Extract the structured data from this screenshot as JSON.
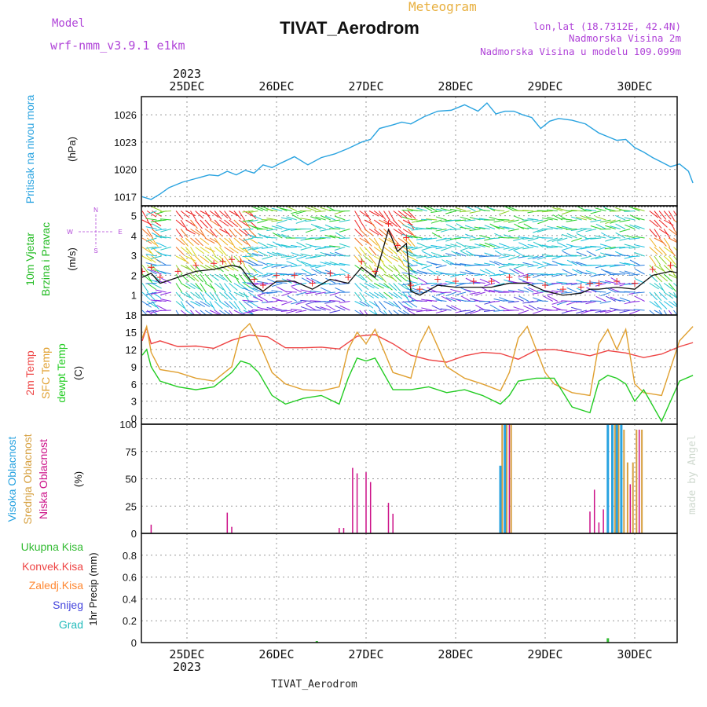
{
  "header": {
    "model_label": "Model",
    "model_name": "wrf-nmm_v3.9.1 e1km",
    "meteogram_label": "Meteogram",
    "station_title": "TIVAT_Aerodrom",
    "coords": "lon,lat (18.7312E, 42.4N)",
    "elevation": "Nadmorska Visina 2m",
    "model_elevation": "Nadmorska Visina u modelu 109.099m"
  },
  "footer": {
    "station": "TIVAT_Aerodrom",
    "credit": "made by Angel"
  },
  "time_axis": {
    "year": "2023",
    "days": [
      "25DEC",
      "26DEC",
      "27DEC",
      "28DEC",
      "29DEC",
      "30DEC"
    ]
  },
  "colors": {
    "pressure": "#29a3e0",
    "temp2m": "#ee4444",
    "sfc_temp": "#e0a030",
    "dewpoint": "#22cc22",
    "high_cloud": "#29a3e0",
    "mid_cloud": "#d6a040",
    "low_cloud": "#cc1188",
    "total_precip": "#33bb33",
    "conv_precip": "#ee4444",
    "frozen_precip": "#ff8833",
    "snow": "#4444dd",
    "graupel": "#22bbbb",
    "wind_label": "#22bb22",
    "wind_compass": "#b044d8"
  },
  "chart_data": [
    {
      "type": "line",
      "panel": "pressure",
      "ylabel_main": "Pritisak na nivou mora",
      "ylabel_unit": "(hPa)",
      "ylim": [
        1016,
        1028
      ],
      "yticks": [
        "1017",
        "1020",
        "1023",
        "1026"
      ],
      "series": [
        {
          "x": [
            0,
            0.1,
            0.2,
            0.3,
            0.45,
            0.6,
            0.75,
            0.85,
            0.95,
            1.05,
            1.15,
            1.25,
            1.35,
            1.45,
            1.55,
            1.7,
            1.85,
            2.0,
            2.15,
            2.3,
            2.45,
            2.55,
            2.65,
            2.8,
            2.9,
            3.0,
            3.15,
            3.3,
            3.45,
            3.6,
            3.75,
            3.85,
            3.95,
            4.05,
            4.15,
            4.25,
            4.35,
            4.45,
            4.55,
            4.65,
            4.8,
            4.95,
            5.1,
            5.2,
            5.3,
            5.4,
            5.5,
            5.6,
            5.7,
            5.8,
            5.9,
            6.0,
            6.1,
            6.15
          ],
          "values": [
            1017.0,
            1016.7,
            1017.3,
            1018.0,
            1018.6,
            1019.0,
            1019.4,
            1019.3,
            1019.8,
            1019.4,
            1019.9,
            1019.6,
            1020.5,
            1020.2,
            1020.7,
            1021.4,
            1020.5,
            1021.3,
            1021.7,
            1022.3,
            1023.0,
            1023.3,
            1024.5,
            1024.9,
            1025.2,
            1025.0,
            1025.8,
            1026.4,
            1026.5,
            1027.1,
            1026.4,
            1027.3,
            1026.1,
            1026.4,
            1026.4,
            1026.0,
            1025.7,
            1024.5,
            1025.3,
            1025.6,
            1025.4,
            1025.0,
            1024.0,
            1023.6,
            1023.2,
            1023.3,
            1022.4,
            1021.9,
            1021.3,
            1020.8,
            1020.3,
            1020.6,
            1019.8,
            1018.5
          ]
        }
      ]
    },
    {
      "type": "line",
      "panel": "wind",
      "ylabel_main": "10m Vjetar",
      "ylabel_sub": "Brzina i Pravac",
      "ylabel_unit": "(m/s)",
      "compass": {
        "north": "N",
        "south": "S",
        "east": "E",
        "west": "W"
      },
      "ylim": [
        0,
        5.5
      ],
      "yticks": [
        "1",
        "2",
        "3",
        "4",
        "5"
      ],
      "series": [
        {
          "name": "speed",
          "x": [
            0,
            0.1,
            0.2,
            0.4,
            0.6,
            0.8,
            0.9,
            1.0,
            1.1,
            1.25,
            1.35,
            1.5,
            1.7,
            1.9,
            2.1,
            2.3,
            2.45,
            2.6,
            2.75,
            2.85,
            2.95,
            3.0,
            3.1,
            3.3,
            3.5,
            3.7,
            3.9,
            4.1,
            4.3,
            4.5,
            4.7,
            4.9,
            5.0,
            5.1,
            5.3,
            5.5,
            5.7,
            5.9,
            6.0,
            6.15
          ],
          "values": [
            1.9,
            2.1,
            1.6,
            1.9,
            2.2,
            2.3,
            2.4,
            2.5,
            2.4,
            1.5,
            1.2,
            1.7,
            1.7,
            1.3,
            1.8,
            1.6,
            2.4,
            1.9,
            4.3,
            3.2,
            3.6,
            1.2,
            1.0,
            1.5,
            1.4,
            1.4,
            1.4,
            1.6,
            1.6,
            1.2,
            1.0,
            1.1,
            1.3,
            1.3,
            1.4,
            1.3,
            2.0,
            2.2,
            2.1,
            1.4
          ]
        }
      ]
    },
    {
      "type": "line",
      "panel": "temperature",
      "ylabel_lines": [
        "2m Temp",
        "SFC Temp",
        "dewpt Temp"
      ],
      "ylabel_unit": "(C)",
      "ylim": [
        -1,
        18
      ],
      "yticks": [
        "0",
        "3",
        "6",
        "9",
        "12",
        "15",
        "18"
      ],
      "series": [
        {
          "name": "2m Temp",
          "x": [
            0,
            0.05,
            0.1,
            0.2,
            0.4,
            0.6,
            0.8,
            1.0,
            1.2,
            1.4,
            1.6,
            1.8,
            2.0,
            2.2,
            2.4,
            2.6,
            2.8,
            3.0,
            3.2,
            3.4,
            3.6,
            3.8,
            4.0,
            4.2,
            4.4,
            4.6,
            4.8,
            5.0,
            5.2,
            5.4,
            5.6,
            5.8,
            6.0,
            6.15
          ],
          "values": [
            13.5,
            15.8,
            13.0,
            13.5,
            12.5,
            12.6,
            12.2,
            13.6,
            14.5,
            14.2,
            12.3,
            12.3,
            12.4,
            12.1,
            14.3,
            14.6,
            13.0,
            11.0,
            10.2,
            9.8,
            10.9,
            11.5,
            11.3,
            10.3,
            11.9,
            12.0,
            11.5,
            10.9,
            11.8,
            11.4,
            10.6,
            11.2,
            12.5,
            13.2
          ]
        },
        {
          "name": "SFC Temp",
          "x": [
            0,
            0.05,
            0.1,
            0.2,
            0.4,
            0.6,
            0.8,
            1.0,
            1.1,
            1.2,
            1.3,
            1.45,
            1.6,
            1.8,
            2.0,
            2.2,
            2.3,
            2.4,
            2.5,
            2.6,
            2.8,
            3.0,
            3.1,
            3.2,
            3.4,
            3.6,
            3.8,
            4.0,
            4.1,
            4.2,
            4.3,
            4.4,
            4.5,
            4.6,
            4.8,
            5.0,
            5.1,
            5.2,
            5.3,
            5.4,
            5.5,
            5.6,
            5.8,
            6.0,
            6.15
          ],
          "values": [
            14.0,
            16.0,
            11.5,
            8.5,
            8.0,
            7.0,
            6.5,
            9.0,
            15.0,
            16.5,
            13.5,
            8.0,
            6.0,
            5.0,
            4.8,
            5.5,
            12.0,
            15.0,
            13.0,
            15.5,
            8.0,
            7.0,
            13.0,
            16.0,
            9.0,
            7.0,
            6.0,
            4.8,
            8.0,
            14.0,
            16.0,
            12.0,
            8.0,
            6.0,
            4.5,
            4.0,
            13.0,
            15.5,
            12.0,
            15.5,
            6.0,
            4.5,
            4.0,
            13.5,
            16.0
          ]
        },
        {
          "name": "dewpt Temp",
          "x": [
            0,
            0.05,
            0.1,
            0.2,
            0.4,
            0.6,
            0.8,
            1.0,
            1.1,
            1.2,
            1.3,
            1.45,
            1.6,
            1.8,
            2.0,
            2.2,
            2.3,
            2.4,
            2.5,
            2.6,
            2.8,
            3.0,
            3.2,
            3.4,
            3.6,
            3.8,
            4.0,
            4.1,
            4.2,
            4.4,
            4.6,
            4.8,
            5.0,
            5.1,
            5.2,
            5.3,
            5.4,
            5.5,
            5.6,
            5.8,
            5.9,
            6.0,
            6.15
          ],
          "values": [
            11.0,
            12.0,
            9.0,
            6.5,
            5.5,
            5.0,
            5.5,
            8.0,
            10.0,
            9.5,
            8.0,
            4.0,
            2.5,
            3.5,
            4.0,
            2.5,
            7.0,
            10.5,
            10.0,
            10.5,
            5.0,
            5.0,
            5.5,
            4.5,
            5.0,
            4.0,
            2.5,
            4.0,
            6.5,
            7.0,
            7.0,
            2.0,
            1.0,
            6.5,
            7.5,
            7.0,
            6.0,
            3.0,
            5.0,
            -0.5,
            3.0,
            6.5,
            7.5
          ]
        }
      ]
    },
    {
      "type": "bar",
      "panel": "cloud",
      "ylabel_lines": [
        "Visoka Oblacnost",
        "Srednja Oblacnost",
        "Niska Oblacnost"
      ],
      "ylabel_unit": "(%)",
      "ylim": [
        0,
        100
      ],
      "yticks": [
        "0",
        "25",
        "50",
        "75",
        "100"
      ],
      "series": [
        {
          "name": "Niska Oblacnost",
          "x": [
            0.1,
            0.95,
            1.0,
            2.2,
            2.25,
            2.35,
            2.4,
            2.5,
            2.55,
            2.75,
            2.8,
            4.0,
            4.05,
            4.1,
            5.0,
            5.05,
            5.1,
            5.15,
            5.25,
            5.35,
            5.45,
            5.55
          ],
          "values": [
            8,
            19,
            6,
            5,
            5,
            60,
            55,
            56,
            47,
            28,
            18,
            60,
            100,
            100,
            20,
            40,
            10,
            22,
            100,
            100,
            45,
            95
          ]
        },
        {
          "name": "Srednja Oblacnost",
          "x": [
            4.02,
            4.07,
            4.12,
            5.28,
            5.32,
            5.38,
            5.42,
            5.48,
            5.52,
            5.58
          ],
          "values": [
            100,
            100,
            100,
            100,
            100,
            95,
            65,
            65,
            95,
            95
          ]
        },
        {
          "name": "Visoka Oblacnost",
          "x": [
            4.0,
            4.05,
            5.2,
            5.25,
            5.3,
            5.35
          ],
          "values": [
            62,
            100,
            100,
            100,
            100,
            100
          ]
        }
      ]
    },
    {
      "type": "bar",
      "panel": "precip",
      "ylabel": "1hr Precip (mm)",
      "legend": [
        "Ukupna Kisa",
        "Konvek.Kisa",
        "Zaledj.Kisa",
        "Snijeg",
        "Grad"
      ],
      "ylim": [
        0,
        1
      ],
      "yticks": [
        "0",
        "0.2",
        "0.4",
        "0.6",
        "0.8"
      ],
      "series": [
        {
          "name": "Ukupna Kisa",
          "x": [
            1.95,
            5.2
          ],
          "values": [
            0.005,
            0.04
          ]
        }
      ]
    }
  ]
}
